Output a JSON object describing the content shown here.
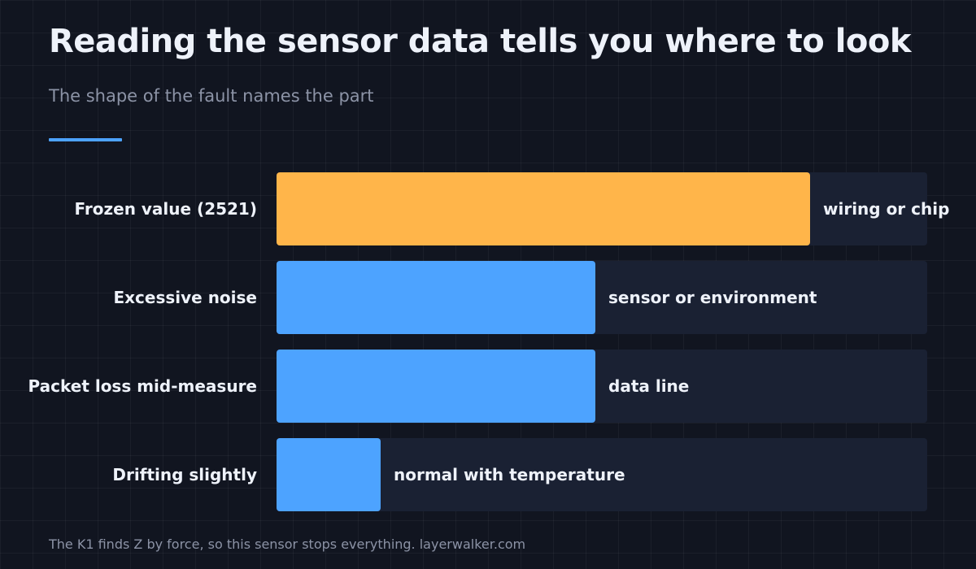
{
  "header": {
    "title": "Reading the sensor data tells you where to look",
    "subtitle": "The shape of the fault names the part"
  },
  "footer": {
    "text": "The K1 finds Z by force, so this sensor stops everything. layerwalker.com"
  },
  "colors": {
    "background": "#111520",
    "track": "#1a2133",
    "highlight": "#ffb54a",
    "bar": "#4da3ff",
    "label": "#eef2fa",
    "muted": "#8c93a6",
    "accent": "#4da3ff"
  },
  "chart_data": {
    "type": "bar",
    "orientation": "horizontal",
    "categories": [
      "Frozen value (2521)",
      "Excessive noise",
      "Packet loss mid-measure",
      "Drifting slightly"
    ],
    "values": [
      82,
      49,
      49,
      16
    ],
    "xlim": [
      0,
      100
    ],
    "annotations": [
      "wiring or chip",
      "sensor or environment",
      "data line",
      "normal with temperature"
    ],
    "highlighted": [
      true,
      false,
      false,
      false
    ],
    "grid": false,
    "legend": "none",
    "axis_ticks_shown": false
  }
}
